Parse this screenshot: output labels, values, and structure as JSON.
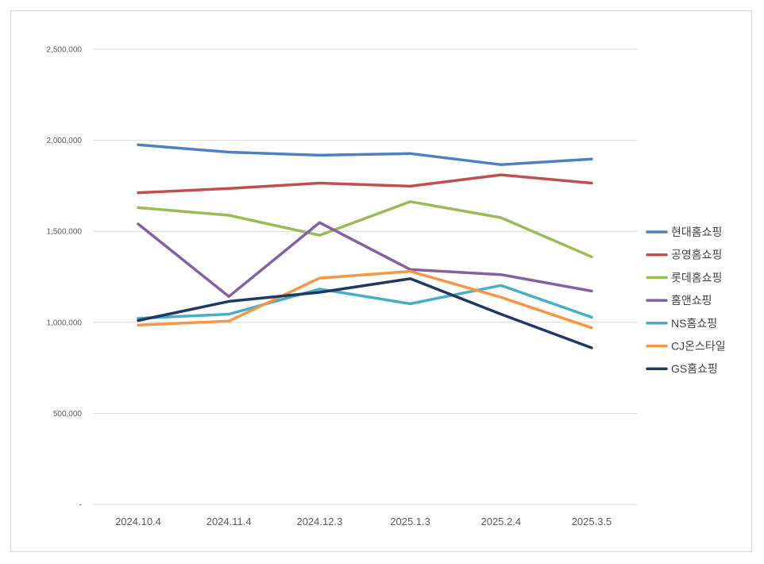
{
  "chart_data": {
    "type": "line",
    "title": "",
    "xlabel": "",
    "ylabel": "",
    "categories": [
      "2024.10.4",
      "2024.11.4",
      "2024.12.3",
      "2025.1.3",
      "2025.2.4",
      "2025.3.5"
    ],
    "ylim": [
      0,
      2500000
    ],
    "yticks": [
      {
        "value": 0,
        "label": "-"
      },
      {
        "value": 500000,
        "label": "500,000"
      },
      {
        "value": 1000000,
        "label": "1,000,000"
      },
      {
        "value": 1500000,
        "label": "1,500,000"
      },
      {
        "value": 2000000,
        "label": "2,000,000"
      },
      {
        "value": 2500000,
        "label": "2,500,000"
      }
    ],
    "grid": true,
    "legend_position": "right",
    "series": [
      {
        "name": "현대홈쇼핑",
        "color": "#4f81bd",
        "values": [
          1975000,
          1935000,
          1918000,
          1927000,
          1866000,
          1897000
        ]
      },
      {
        "name": "공영홈쇼핑",
        "color": "#c0504d",
        "values": [
          1712000,
          1735000,
          1765000,
          1748000,
          1810000,
          1765000
        ]
      },
      {
        "name": "롯데홈쇼핑",
        "color": "#9bbb59",
        "values": [
          1630000,
          1588000,
          1478000,
          1663000,
          1575000,
          1360000
        ]
      },
      {
        "name": "홈앤쇼핑",
        "color": "#8064a2",
        "values": [
          1540000,
          1142000,
          1548000,
          1290000,
          1262000,
          1172000
        ]
      },
      {
        "name": "NS홈쇼핑",
        "color": "#4bacc6",
        "values": [
          1022000,
          1045000,
          1183000,
          1102000,
          1203000,
          1028000
        ]
      },
      {
        "name": "CJ온스타일",
        "color": "#f79646",
        "values": [
          985000,
          1007000,
          1243000,
          1280000,
          1138000,
          970000
        ]
      },
      {
        "name": "GS홈쇼핑",
        "color": "#1f3864",
        "values": [
          1010000,
          1115000,
          1165000,
          1240000,
          1045000,
          860000
        ]
      }
    ]
  }
}
